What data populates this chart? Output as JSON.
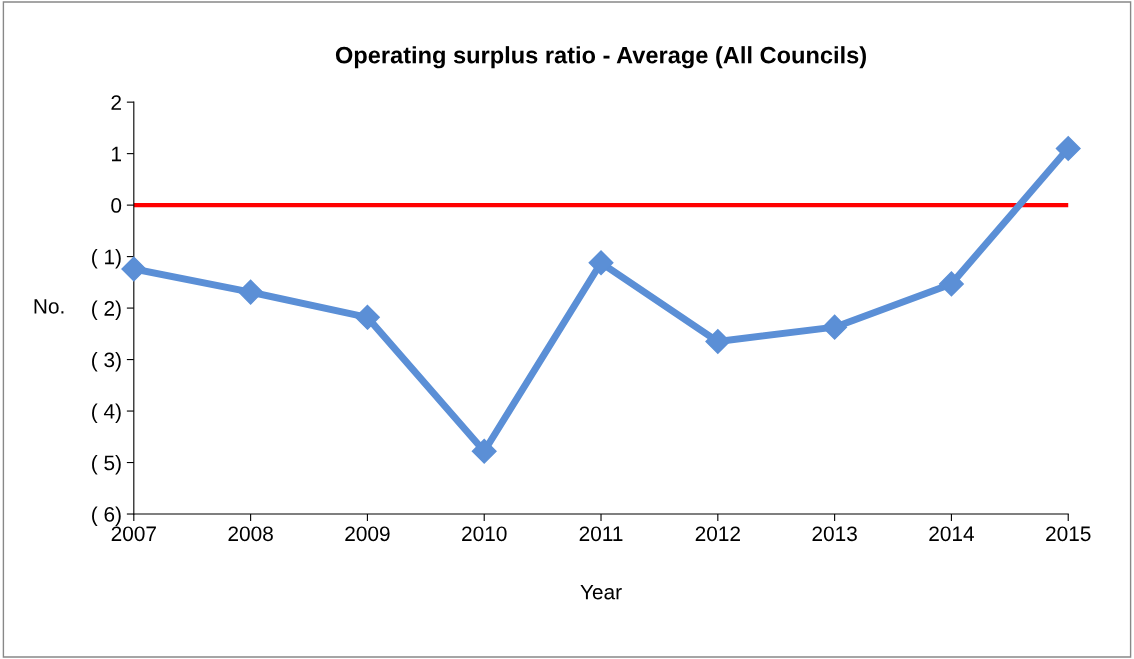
{
  "chart_data": {
    "type": "line",
    "title": "Operating surplus ratio - Average (All Councils)",
    "xlabel": "Year",
    "ylabel": "No.",
    "x": [
      2007,
      2008,
      2009,
      2010,
      2011,
      2012,
      2013,
      2014,
      2015
    ],
    "series": [
      {
        "color": "#5b8fd6",
        "values": [
          -1.24,
          -1.69,
          -2.18,
          -4.78,
          -1.12,
          -2.65,
          -2.37,
          -1.53,
          1.1
        ]
      }
    ],
    "xlim": [
      2007,
      2015
    ],
    "xticks": [
      2007,
      2008,
      2009,
      2010,
      2011,
      2012,
      2013,
      2014,
      2015
    ],
    "ylim": [
      -6,
      2
    ],
    "yticks": [
      {
        "value": -6,
        "label": "( 6)"
      },
      {
        "value": -5,
        "label": "( 5)"
      },
      {
        "value": -4,
        "label": "( 4)"
      },
      {
        "value": -3,
        "label": "( 3)"
      },
      {
        "value": -2,
        "label": "( 2)"
      },
      {
        "value": -1,
        "label": "( 1)"
      },
      0,
      1,
      2
    ],
    "ref_lines": [
      {
        "axis": "y",
        "value": 0,
        "color": "#ff0000",
        "line_style": "solid"
      }
    ],
    "marker": "diamond",
    "line_style": "solid",
    "grid": false,
    "legend": false
  }
}
